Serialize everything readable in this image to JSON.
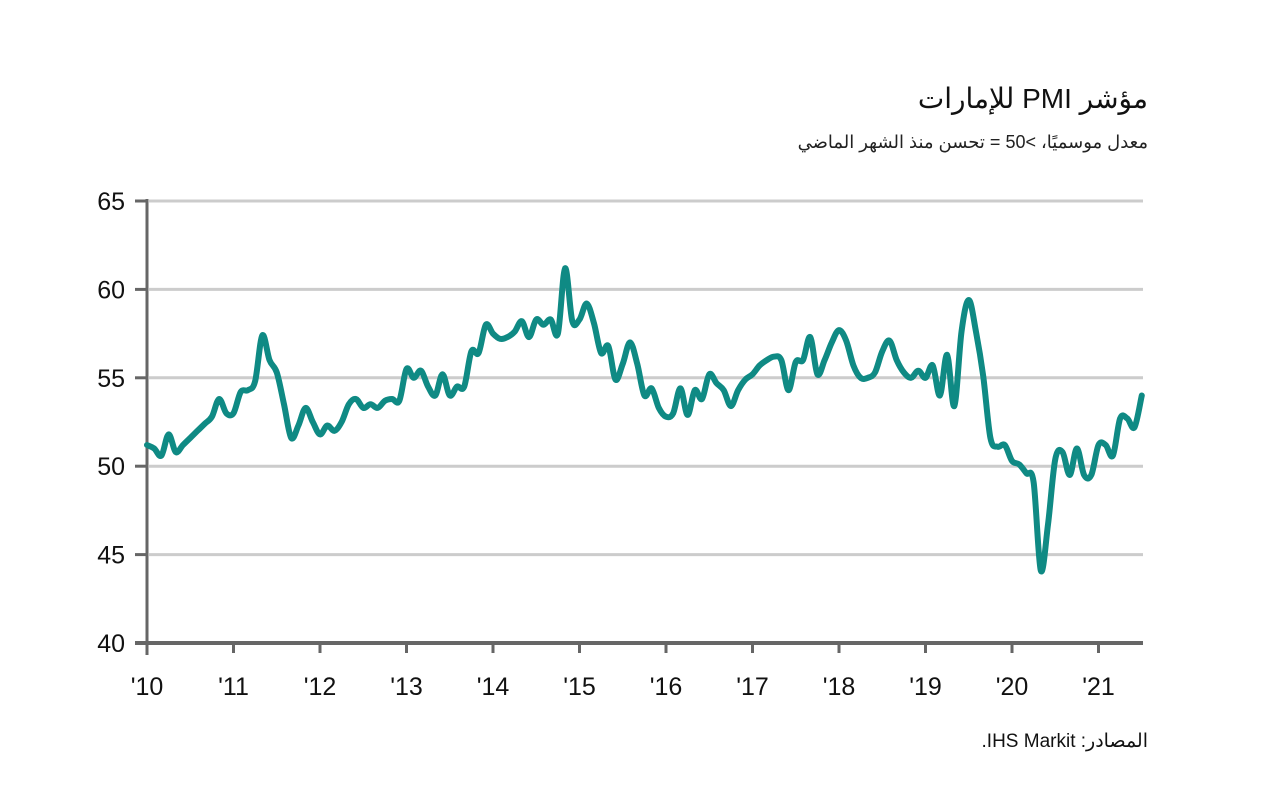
{
  "header": {
    "title": "مؤشر PMI للإمارات",
    "subtitle": "معدل موسميًا، >50 = تحسن منذ الشهر الماضي"
  },
  "footer": {
    "source": "المصادر: IHS Markit."
  },
  "colors": {
    "line": "#0f8a84",
    "grid": "#cccccc",
    "axis": "#666666"
  },
  "chart_data": {
    "type": "line",
    "title": "مؤشر PMI للإمارات",
    "subtitle": "معدل موسميًا، >50 = تحسن منذ الشهر الماضي",
    "xlabel": "",
    "ylabel": "",
    "ylim": [
      40,
      65
    ],
    "yticks": [
      40,
      45,
      50,
      55,
      60,
      65
    ],
    "ytick_labels": [
      "40",
      "45",
      "50",
      "55",
      "60",
      "65"
    ],
    "xticks": [
      "'10",
      "'11",
      "'12",
      "'13",
      "'14",
      "'15",
      "'16",
      "'17",
      "'18",
      "'19",
      "'20",
      "'21"
    ],
    "x_start": "2010-01",
    "x_end": "2021-07",
    "frequency": "monthly",
    "grid": true,
    "legend": "none",
    "series": [
      {
        "name": "UAE PMI",
        "values": [
          51.2,
          51.0,
          50.6,
          51.8,
          50.8,
          51.2,
          51.6,
          52.0,
          52.4,
          52.8,
          53.8,
          53.0,
          53.0,
          54.2,
          54.3,
          54.8,
          57.4,
          56.0,
          55.3,
          53.5,
          51.6,
          52.3,
          53.3,
          52.5,
          51.8,
          52.3,
          52.0,
          52.5,
          53.5,
          53.8,
          53.3,
          53.5,
          53.3,
          53.7,
          53.8,
          53.7,
          55.5,
          55.0,
          55.4,
          54.5,
          54.0,
          55.2,
          54.0,
          54.5,
          54.5,
          56.5,
          56.4,
          58.0,
          57.5,
          57.2,
          57.3,
          57.6,
          58.2,
          57.3,
          58.3,
          58.0,
          58.3,
          57.5,
          61.2,
          58.2,
          58.3,
          59.2,
          58.1,
          56.4,
          56.8,
          54.9,
          55.8,
          57.0,
          55.8,
          54.0,
          54.4,
          53.3,
          52.8,
          53.0,
          54.4,
          52.9,
          54.3,
          53.8,
          55.2,
          54.7,
          54.3,
          53.4,
          54.3,
          54.9,
          55.2,
          55.7,
          56.0,
          56.2,
          56.0,
          54.3,
          55.9,
          56.0,
          57.3,
          55.2,
          56.0,
          57.0,
          57.7,
          57.1,
          55.7,
          55.0,
          55.0,
          55.3,
          56.5,
          57.1,
          56.0,
          55.3,
          55.0,
          55.4,
          55.0,
          55.7,
          54.0,
          56.3,
          53.4,
          57.6,
          59.4,
          57.6,
          55.1,
          51.6,
          51.1,
          51.2,
          50.3,
          50.1,
          49.6,
          49.1,
          44.1,
          46.7,
          50.4,
          50.8,
          49.5,
          51.0,
          49.5,
          49.5,
          51.2,
          51.2,
          50.6,
          52.7,
          52.7,
          52.2,
          54.0
        ]
      }
    ]
  }
}
